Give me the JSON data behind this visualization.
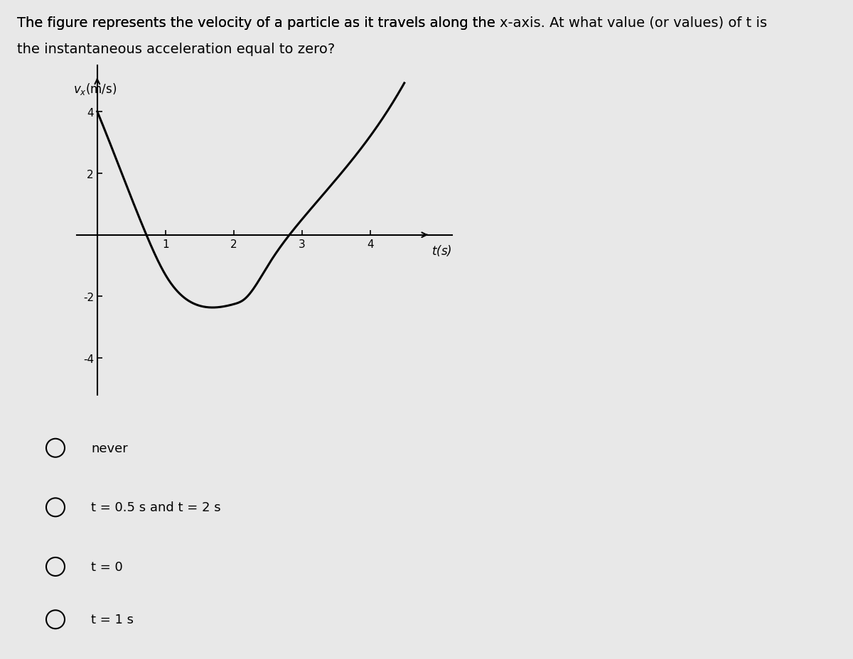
{
  "title_line1": "The figure represents the velocity of a particle as it travels along the x-axis. At what value (or values) of t is",
  "title_line2": "the instantaneous acceleration equal to zero?",
  "ylabel": "vₓ(m/s)",
  "xlabel": "t(s)",
  "xlim": [
    -0.3,
    5.2
  ],
  "ylim": [
    -5.2,
    5.5
  ],
  "xticks": [
    1,
    2,
    3,
    4
  ],
  "yticks": [
    -4,
    -2,
    2,
    4
  ],
  "curve_color": "#000000",
  "curve_linewidth": 2.2,
  "background_color": "#e8e8e8",
  "axes_color": "#000000",
  "t_points": [
    0,
    0.5,
    0.72,
    1.0,
    1.5,
    2.0,
    2.15,
    2.5,
    3.0,
    3.5,
    4.0
  ],
  "v_points": [
    4.0,
    1.2,
    0.0,
    -1.3,
    -2.3,
    -2.25,
    -2.1,
    -1.0,
    0.5,
    1.8,
    3.2
  ],
  "choices": [
    "never",
    "t = 0.5 s and t = 2 s",
    "t = 0",
    "t = 1 s"
  ],
  "choice_fontsize": 13,
  "title_fontsize": 14
}
